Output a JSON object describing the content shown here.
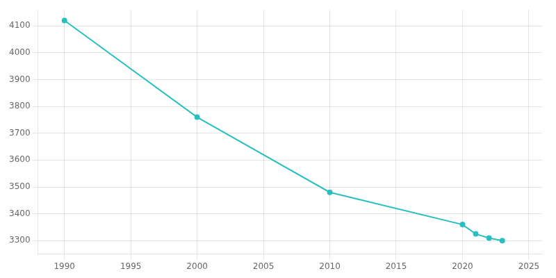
{
  "chart_data": {
    "type": "line",
    "x": [
      1990,
      2000,
      2010,
      2020,
      2021,
      2022,
      2023
    ],
    "values": [
      4120,
      3760,
      3480,
      3360,
      3325,
      3310,
      3300
    ],
    "color": "#2abfbf",
    "marker": "circle",
    "xlim": [
      1988,
      2026
    ],
    "ylim": [
      3250,
      4160
    ],
    "xticks": [
      1990,
      1995,
      2000,
      2005,
      2010,
      2015,
      2020,
      2025
    ],
    "yticks": [
      3300,
      3400,
      3500,
      3600,
      3700,
      3800,
      3900,
      4000,
      4100
    ],
    "grid": true
  }
}
